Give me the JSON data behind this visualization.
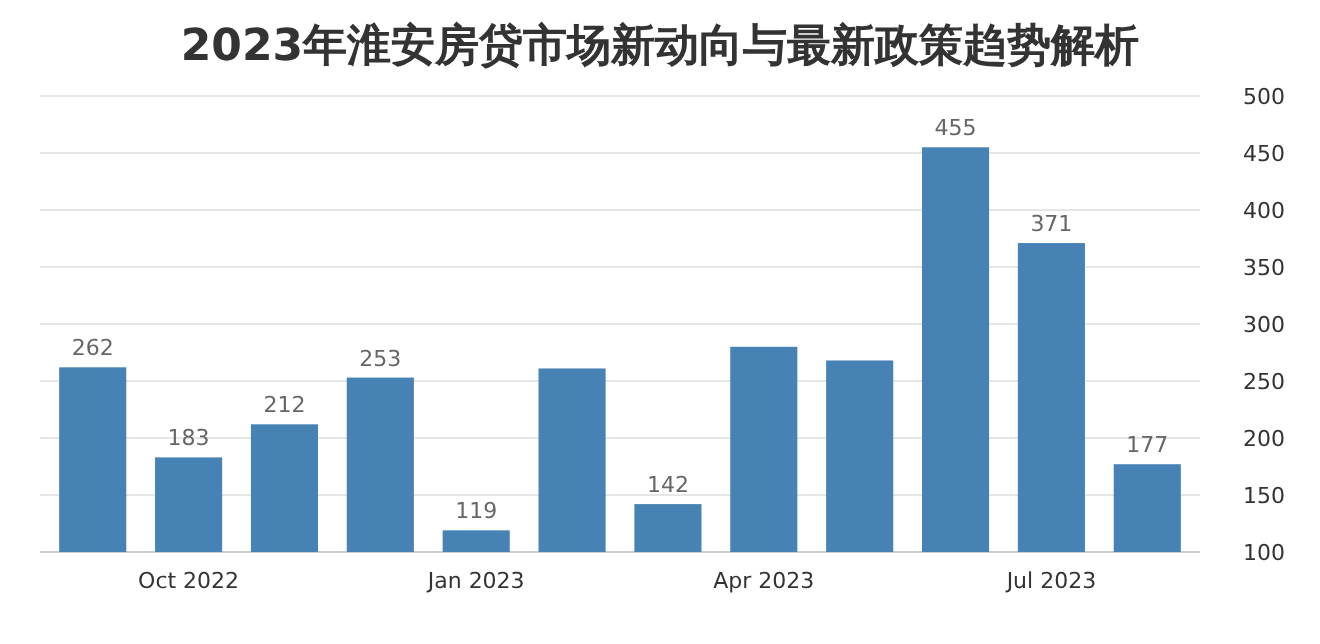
{
  "chart_data": {
    "type": "bar",
    "title": "2023年淮安房贷市场新动向与最新政策趋势解析",
    "categories": [
      null,
      "Oct 2022",
      null,
      null,
      "Jan 2023",
      null,
      null,
      "Apr 2023",
      null,
      null,
      "Jul 2023",
      null
    ],
    "values": [
      262,
      183,
      212,
      253,
      119,
      261,
      142,
      280,
      268,
      455,
      371,
      177
    ],
    "value_labels": [
      "262",
      "183",
      "212",
      "253",
      "119",
      null,
      "142",
      null,
      null,
      "455",
      "371",
      "177"
    ],
    "color": "#4682b4",
    "ylim": [
      100,
      500
    ],
    "yticks": [
      100,
      150,
      200,
      250,
      300,
      350,
      400,
      450,
      500
    ],
    "grid": "y"
  }
}
